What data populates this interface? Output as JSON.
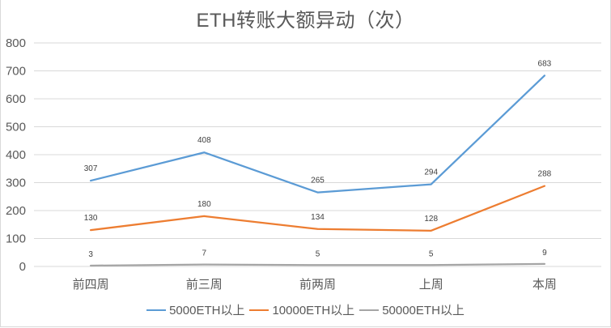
{
  "chart_data": {
    "type": "line",
    "title": "ETH转账大额异动（次）",
    "xlabel": "",
    "ylabel": "",
    "categories": [
      "前四周",
      "前三周",
      "前两周",
      "上周",
      "本周"
    ],
    "series": [
      {
        "name": "5000ETH以上",
        "color": "#5B9BD5",
        "values": [
          307,
          408,
          265,
          294,
          683
        ]
      },
      {
        "name": "10000ETH以上",
        "color": "#ED7D31",
        "values": [
          130,
          180,
          134,
          128,
          288
        ]
      },
      {
        "name": "50000ETH以上",
        "color": "#A5A5A5",
        "values": [
          3,
          7,
          5,
          5,
          9
        ]
      }
    ],
    "ylim": [
      0,
      800
    ],
    "yticks": [
      0,
      100,
      200,
      300,
      400,
      500,
      600,
      700,
      800
    ],
    "grid": true,
    "legend_position": "bottom",
    "data_labels": true
  },
  "title": "ETH转账大额异动（次）",
  "legend": [
    {
      "label": "5000ETH以上",
      "color": "#5B9BD5"
    },
    {
      "label": "10000ETH以上",
      "color": "#ED7D31"
    },
    {
      "label": "50000ETH以上",
      "color": "#A5A5A5"
    }
  ]
}
